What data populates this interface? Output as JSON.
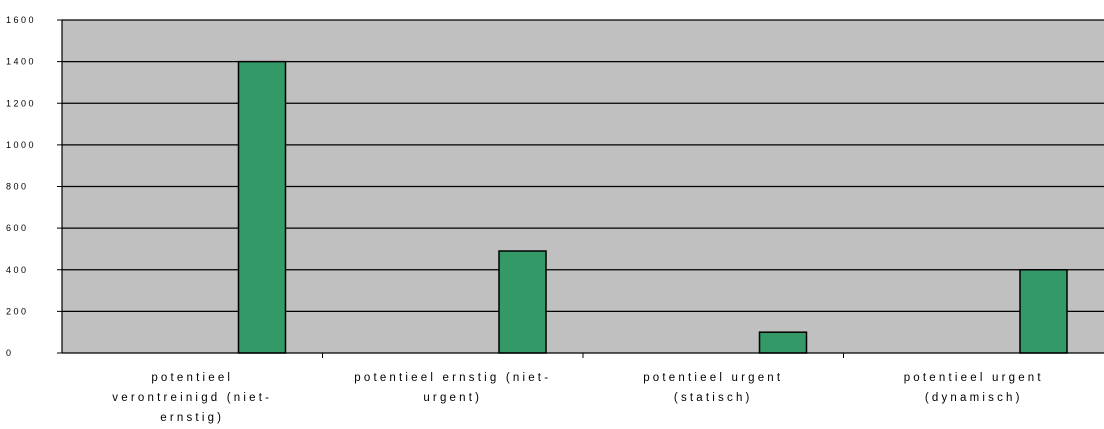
{
  "chart_data": {
    "type": "bar",
    "categories": [
      "potentieel verontreinigd (niet-ernstig)",
      "potentieel ernstig (niet-urgent)",
      "potentieel urgent (statisch)",
      "potentieel urgent (dynamisch)"
    ],
    "values": [
      1400,
      490,
      100,
      400
    ],
    "ylim": [
      0,
      1600
    ],
    "yticks": [
      "0",
      "200",
      "400",
      "600",
      "800",
      "1000",
      "1200",
      "1400",
      "1600"
    ],
    "grid": true,
    "colors": {
      "plot_bg": "#c0c0c0",
      "bar": "#339966",
      "gridline": "#000000"
    }
  }
}
